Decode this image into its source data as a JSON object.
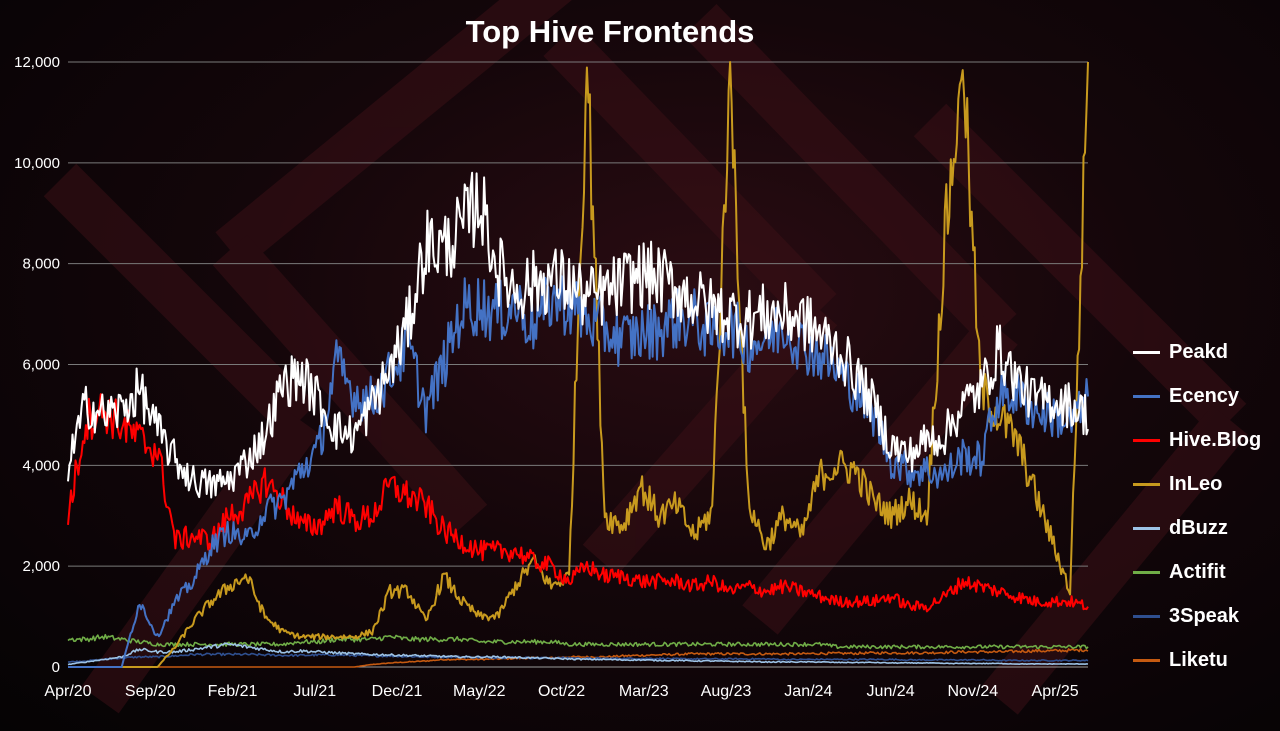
{
  "chart_data": {
    "type": "line",
    "title": "Top Hive Frontends",
    "xlabel": "",
    "ylabel": "",
    "ylim": [
      0,
      12000
    ],
    "yticks": [
      0,
      2000,
      4000,
      6000,
      8000,
      10000,
      12000
    ],
    "ytick_labels": [
      "0",
      "2,000",
      "4,000",
      "6,000",
      "8,000",
      "10,000",
      "12,000"
    ],
    "xtick_labels": [
      "Apr/20",
      "Sep/20",
      "Feb/21",
      "Jul/21",
      "Dec/21",
      "May/22",
      "Oct/22",
      "Mar/23",
      "Aug/23",
      "Jan/24",
      "Jun/24",
      "Nov/24",
      "Apr/25"
    ],
    "grid": true,
    "legend_position": "right",
    "series": [
      {
        "name": "Peakd",
        "color": "#ffffff",
        "values": [
          4000,
          5200,
          5000,
          5100,
          5500,
          4700,
          4100,
          3700,
          3600,
          3700,
          4100,
          4600,
          5600,
          5800,
          5300,
          4700,
          4600,
          5200,
          5900,
          6800,
          8400,
          8300,
          8700,
          9300,
          7900,
          7500,
          7600,
          7700,
          7600,
          7300,
          7400,
          7600,
          7800,
          7700,
          7500,
          7300,
          7100,
          7000,
          6900,
          7000,
          7000,
          6900,
          6600,
          6300,
          5800,
          5200,
          4400,
          4200,
          4500,
          4600,
          5200,
          5500,
          6300,
          5700,
          5300,
          5300,
          5200,
          5000
        ]
      },
      {
        "name": "Ecency",
        "color": "#4472c4",
        "values": [
          0,
          0,
          0,
          0,
          1300,
          600,
          1300,
          1700,
          2400,
          2700,
          2500,
          3100,
          3300,
          3900,
          4300,
          6000,
          5400,
          5300,
          5800,
          6400,
          5100,
          6000,
          7100,
          7200,
          7000,
          7200,
          6800,
          7300,
          7200,
          6900,
          6700,
          6500,
          6600,
          6700,
          6900,
          6900,
          6600,
          6800,
          6400,
          6500,
          6800,
          6400,
          6200,
          5900,
          5500,
          5000,
          4100,
          3900,
          3900,
          3800,
          4200,
          4100,
          5400,
          5400,
          5100,
          5000,
          4800,
          5300
        ]
      },
      {
        "name": "Hive.Blog",
        "color": "#ff0000",
        "values": [
          3000,
          4900,
          5100,
          4800,
          4500,
          4300,
          2500,
          2600,
          2500,
          3000,
          3200,
          3700,
          3300,
          2800,
          2800,
          3200,
          2900,
          3000,
          3600,
          3400,
          3200,
          2700,
          2500,
          2300,
          2300,
          2300,
          2100,
          2000,
          1700,
          2000,
          1800,
          1800,
          1700,
          1700,
          1700,
          1600,
          1700,
          1500,
          1600,
          1500,
          1600,
          1500,
          1400,
          1300,
          1300,
          1300,
          1400,
          1200,
          1200,
          1400,
          1700,
          1600,
          1500,
          1400,
          1300,
          1300,
          1300,
          1200
        ]
      },
      {
        "name": "InLeo",
        "color": "#c89a1e",
        "values": [
          0,
          0,
          0,
          0,
          0,
          0,
          400,
          900,
          1300,
          1600,
          1800,
          1000,
          700,
          600,
          600,
          600,
          600,
          700,
          1500,
          1500,
          900,
          1800,
          1300,
          1000,
          1000,
          1600,
          2100,
          1600,
          1800,
          12000,
          3000,
          2800,
          3600,
          3000,
          3200,
          2600,
          3100,
          12000,
          3300,
          2400,
          3000,
          2600,
          3800,
          4000,
          3900,
          3300,
          3000,
          3300,
          3000,
          8500,
          12000,
          5500,
          5000,
          4500,
          3500,
          2500,
          1500,
          12000
        ]
      },
      {
        "name": "dBuzz",
        "color": "#9dc3e6",
        "values": [
          50,
          100,
          150,
          200,
          350,
          300,
          300,
          350,
          400,
          450,
          400,
          350,
          300,
          320,
          300,
          280,
          260,
          250,
          240,
          230,
          220,
          210,
          200,
          200,
          200,
          190,
          180,
          170,
          160,
          150,
          150,
          140,
          140,
          130,
          130,
          120,
          120,
          110,
          110,
          100,
          100,
          100,
          100,
          90,
          90,
          90,
          80,
          80,
          80,
          70,
          70,
          70,
          70,
          60,
          60,
          60,
          60,
          60
        ]
      },
      {
        "name": "Actifit",
        "color": "#70ad47",
        "values": [
          550,
          550,
          600,
          550,
          500,
          450,
          450,
          450,
          450,
          450,
          450,
          450,
          450,
          500,
          500,
          550,
          550,
          550,
          600,
          550,
          550,
          550,
          550,
          500,
          500,
          500,
          500,
          500,
          450,
          450,
          450,
          450,
          450,
          450,
          450,
          450,
          450,
          450,
          450,
          450,
          450,
          450,
          450,
          400,
          400,
          400,
          400,
          400,
          400,
          400,
          400,
          400,
          400,
          400,
          400,
          400,
          400,
          400
        ]
      },
      {
        "name": "3Speak",
        "color": "#2f4f8f",
        "values": [
          100,
          120,
          150,
          180,
          200,
          200,
          220,
          250,
          250,
          250,
          250,
          240,
          230,
          230,
          240,
          240,
          230,
          220,
          220,
          210,
          200,
          200,
          200,
          190,
          190,
          190,
          180,
          180,
          180,
          170,
          170,
          170,
          170,
          170,
          160,
          160,
          160,
          160,
          160,
          160,
          150,
          150,
          150,
          150,
          150,
          150,
          150,
          140,
          140,
          140,
          140,
          140,
          130,
          130,
          130,
          130,
          130,
          130
        ]
      },
      {
        "name": "Liketu",
        "color": "#c55a11",
        "values": [
          0,
          0,
          0,
          0,
          0,
          0,
          0,
          0,
          0,
          0,
          0,
          0,
          0,
          0,
          0,
          0,
          0,
          50,
          80,
          100,
          120,
          150,
          150,
          150,
          160,
          170,
          180,
          180,
          200,
          200,
          200,
          220,
          230,
          240,
          250,
          260,
          260,
          260,
          260,
          260,
          260,
          260,
          270,
          270,
          270,
          280,
          280,
          280,
          280,
          290,
          300,
          300,
          300,
          310,
          320,
          320,
          330,
          340
        ]
      }
    ]
  }
}
